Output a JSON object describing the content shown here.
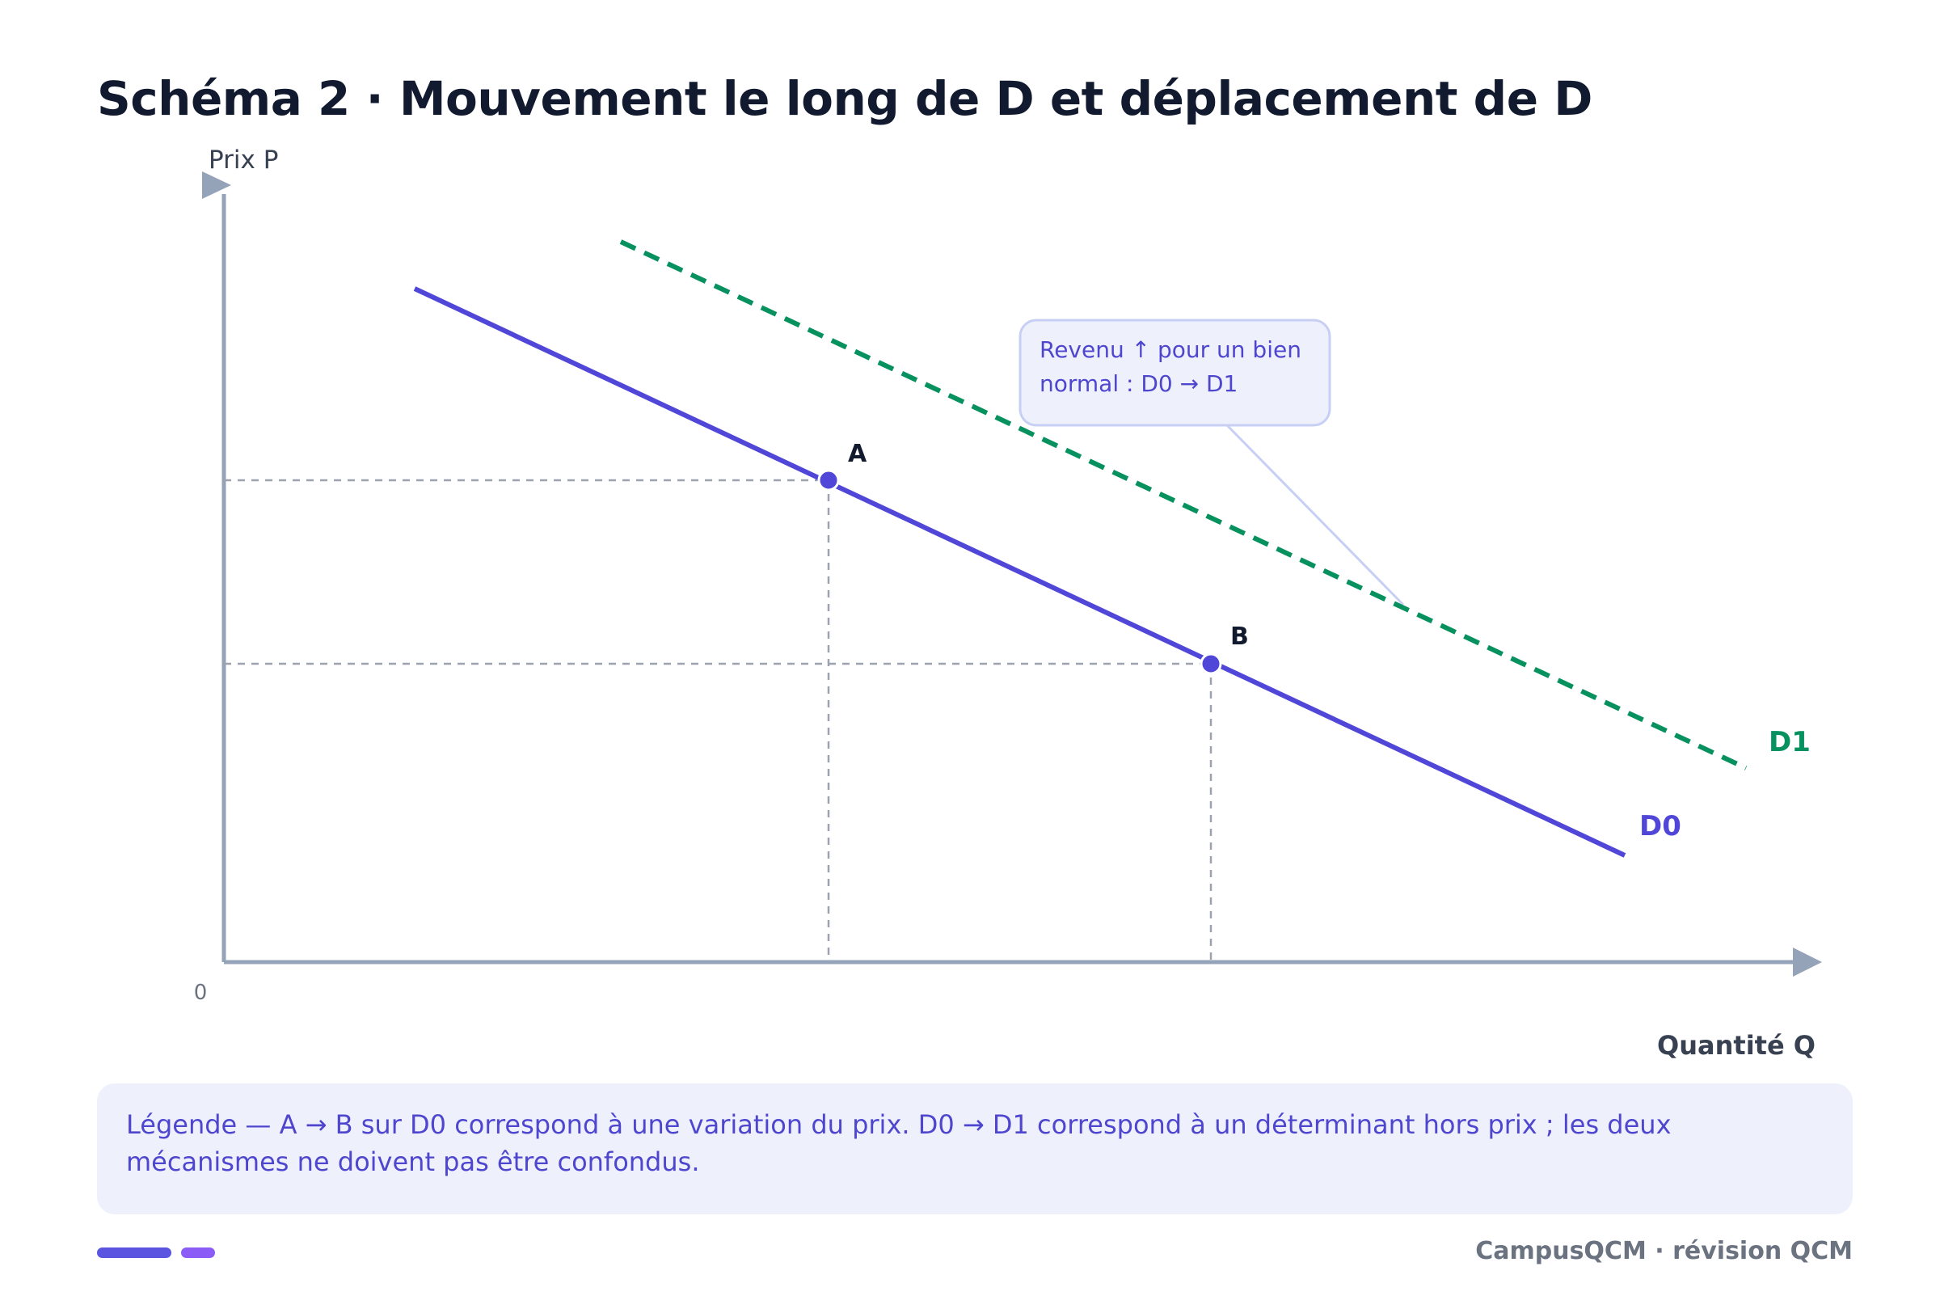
{
  "title": "Schéma 2 · Mouvement le long de D et déplacement de D",
  "axes": {
    "y_label": "Prix P",
    "x_label": "Quantité Q",
    "origin_label": "0"
  },
  "curves": {
    "d0": {
      "label": "D0",
      "color": "#5046d8"
    },
    "d1": {
      "label": "D1",
      "color": "#06915f",
      "style": "dashed"
    }
  },
  "points": {
    "a": {
      "label": "A",
      "curve": "D0"
    },
    "b": {
      "label": "B",
      "curve": "D0"
    }
  },
  "callout": {
    "line1": "Revenu ↑ pour un bien",
    "line2": "normal : D0 → D1"
  },
  "legend": {
    "line1": "Légende — A → B sur D0 correspond à une variation du prix. D0 → D1 correspond à un déterminant hors prix ; les deux",
    "line2": "mécanismes ne doivent pas être confondus."
  },
  "footer": "CampusQCM · révision QCM",
  "colors": {
    "axis": "#94a3b8",
    "guide": "#9ca3af",
    "callout_bg": "#eef1fc",
    "callout_border": "#c7d0f4"
  }
}
